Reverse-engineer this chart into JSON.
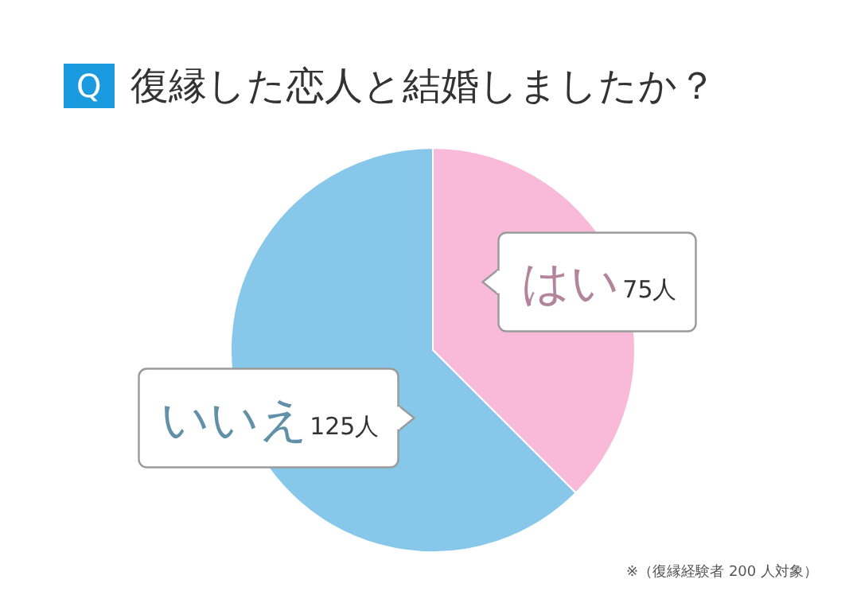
{
  "chart_data": {
    "type": "pie",
    "title": "Q 復縁した恋人と結婚しましたか？",
    "categories": [
      "はい",
      "いいえ"
    ],
    "values": [
      75,
      125
    ],
    "value_labels": [
      "75人",
      "125人"
    ],
    "colors": [
      "#f9b9d9",
      "#87c8ea"
    ],
    "annotations": [
      "※（復縁経験者 200 人対象）"
    ]
  }
}
